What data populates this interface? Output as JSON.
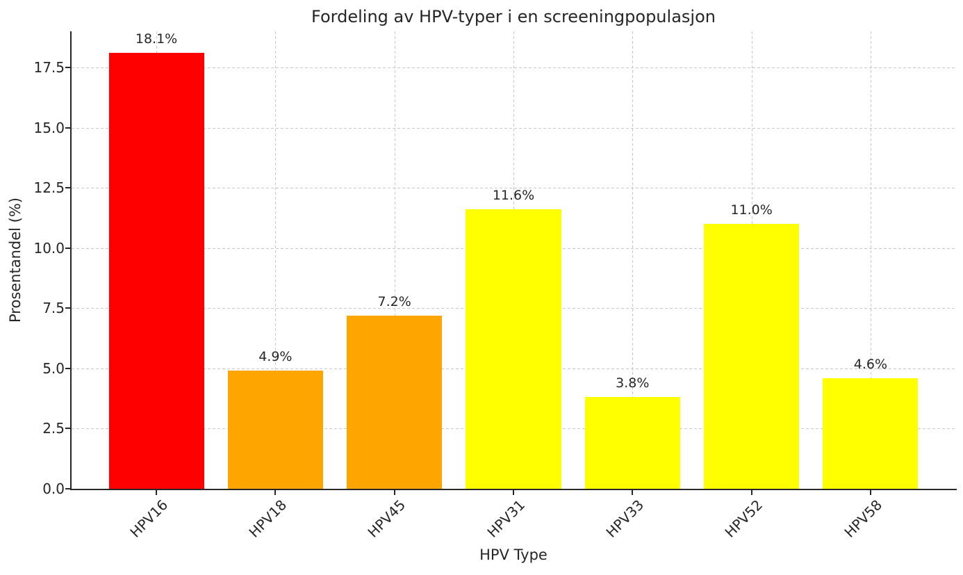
{
  "chart_data": {
    "type": "bar",
    "title": "Fordeling av HPV-typer i en screeningpopulasjon",
    "xlabel": "HPV Type",
    "ylabel": "Prosentandel (%)",
    "categories": [
      "HPV16",
      "HPV18",
      "HPV45",
      "HPV31",
      "HPV33",
      "HPV52",
      "HPV58"
    ],
    "values": [
      18.1,
      4.9,
      7.2,
      11.6,
      3.8,
      11.0,
      4.6
    ],
    "value_labels": [
      "18.1%",
      "4.9%",
      "7.2%",
      "11.6%",
      "3.8%",
      "11.0%",
      "4.6%"
    ],
    "bar_colors": [
      "#ff0000",
      "#ffa500",
      "#ffa500",
      "#ffff00",
      "#ffff00",
      "#ffff00",
      "#ffff00"
    ],
    "ylim": [
      0,
      19.0
    ],
    "ytick_values": [
      0,
      2.5,
      5,
      7.5,
      10,
      12.5,
      15,
      17.5
    ],
    "ytick_labels": [
      "0.0",
      "2.5",
      "5.0",
      "7.5",
      "10.0",
      "12.5",
      "15.0",
      "17.5"
    ],
    "grid": "dashed",
    "grid_color": "#c9c9c9",
    "legend_position": "none",
    "background_color": "#ffffff",
    "text_color": "#262626"
  }
}
